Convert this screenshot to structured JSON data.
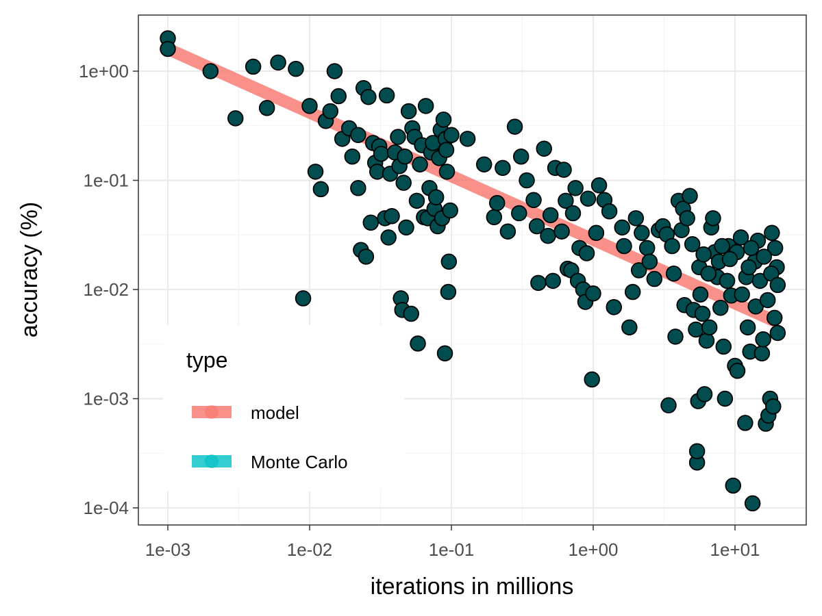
{
  "chart_data": {
    "type": "scatter",
    "xlabel": "iterations in millions",
    "ylabel": "accuracy (%)",
    "x_scale": "log10",
    "y_scale": "log10",
    "xlim": [
      0.001,
      20
    ],
    "ylim": [
      0.0001,
      2
    ],
    "x_ticks": [
      0.001,
      0.01,
      0.1,
      1,
      10
    ],
    "x_tick_labels": [
      "1e-03",
      "1e-02",
      "1e-01",
      "1e+00",
      "1e+01"
    ],
    "y_ticks": [
      0.0001,
      0.001,
      0.01,
      0.1,
      1
    ],
    "y_tick_labels": [
      "1e-04",
      "1e-03",
      "1e-02",
      "1e-01",
      "1e+00"
    ],
    "grid": true,
    "legend": {
      "title": "type",
      "position": "bottom-left",
      "entries": [
        {
          "label": "model",
          "color": "#F8766D"
        },
        {
          "label": "Monte Carlo",
          "color": "#00BFC4"
        }
      ]
    },
    "series": [
      {
        "name": "model",
        "kind": "line",
        "color": "#F8766D",
        "x": [
          0.001,
          20
        ],
        "y": [
          1.6,
          0.005
        ]
      },
      {
        "name": "Monte Carlo",
        "kind": "scatter",
        "color": "#00BFC4",
        "points": [
          [
            0.001,
            2.0
          ],
          [
            0.001,
            1.6
          ],
          [
            0.002,
            1.0
          ],
          [
            0.003,
            0.37
          ],
          [
            0.004,
            1.1
          ],
          [
            0.005,
            0.46
          ],
          [
            0.006,
            1.2
          ],
          [
            0.008,
            1.05
          ],
          [
            0.009,
            0.0083
          ],
          [
            0.01,
            0.48
          ],
          [
            0.011,
            0.12
          ],
          [
            0.012,
            0.083
          ],
          [
            0.013,
            0.35
          ],
          [
            0.014,
            0.43
          ],
          [
            0.015,
            1.0
          ],
          [
            0.016,
            0.59
          ],
          [
            0.017,
            0.24
          ],
          [
            0.019,
            0.3
          ],
          [
            0.02,
            0.165
          ],
          [
            0.022,
            0.085
          ],
          [
            0.022,
            0.26
          ],
          [
            0.023,
            0.023
          ],
          [
            0.024,
            0.7
          ],
          [
            0.025,
            0.02
          ],
          [
            0.026,
            0.58
          ],
          [
            0.027,
            0.041
          ],
          [
            0.028,
            0.22
          ],
          [
            0.029,
            0.145
          ],
          [
            0.03,
            0.12
          ],
          [
            0.031,
            0.205
          ],
          [
            0.032,
            0.175
          ],
          [
            0.034,
            0.045
          ],
          [
            0.035,
            0.6
          ],
          [
            0.036,
            0.03
          ],
          [
            0.037,
            0.115
          ],
          [
            0.038,
            0.047
          ],
          [
            0.04,
            0.18
          ],
          [
            0.042,
            0.25
          ],
          [
            0.043,
            0.135
          ],
          [
            0.044,
            0.0083
          ],
          [
            0.045,
            0.0065
          ],
          [
            0.046,
            0.095
          ],
          [
            0.047,
            0.165
          ],
          [
            0.048,
            0.037
          ],
          [
            0.05,
            0.43
          ],
          [
            0.052,
            0.006
          ],
          [
            0.053,
            0.3
          ],
          [
            0.055,
            0.25
          ],
          [
            0.057,
            0.065
          ],
          [
            0.058,
            0.0032
          ],
          [
            0.06,
            0.14
          ],
          [
            0.062,
            0.21
          ],
          [
            0.064,
            0.046
          ],
          [
            0.066,
            0.48
          ],
          [
            0.068,
            0.045
          ],
          [
            0.07,
            0.085
          ],
          [
            0.072,
            0.18
          ],
          [
            0.074,
            0.22
          ],
          [
            0.076,
            0.055
          ],
          [
            0.078,
            0.07
          ],
          [
            0.08,
            0.038
          ],
          [
            0.082,
            0.16
          ],
          [
            0.084,
            0.29
          ],
          [
            0.086,
            0.045
          ],
          [
            0.088,
            0.36
          ],
          [
            0.09,
            0.0026
          ],
          [
            0.091,
            0.24
          ],
          [
            0.092,
            0.19
          ],
          [
            0.093,
            0.12
          ],
          [
            0.095,
            0.0095
          ],
          [
            0.096,
            0.018
          ],
          [
            0.098,
            0.053
          ],
          [
            0.1,
            0.26
          ],
          [
            0.13,
            0.24
          ],
          [
            0.17,
            0.14
          ],
          [
            0.2,
            0.046
          ],
          [
            0.21,
            0.062
          ],
          [
            0.23,
            0.13
          ],
          [
            0.25,
            0.034
          ],
          [
            0.28,
            0.31
          ],
          [
            0.3,
            0.05
          ],
          [
            0.31,
            0.165
          ],
          [
            0.34,
            0.1
          ],
          [
            0.38,
            0.066
          ],
          [
            0.4,
            0.038
          ],
          [
            0.41,
            0.0115
          ],
          [
            0.45,
            0.195
          ],
          [
            0.48,
            0.031
          ],
          [
            0.5,
            0.048
          ],
          [
            0.52,
            0.012
          ],
          [
            0.54,
            0.13
          ],
          [
            0.6,
            0.034
          ],
          [
            0.62,
            0.125
          ],
          [
            0.64,
            0.065
          ],
          [
            0.66,
            0.0155
          ],
          [
            0.7,
            0.015
          ],
          [
            0.72,
            0.05
          ],
          [
            0.75,
            0.085
          ],
          [
            0.78,
            0.012
          ],
          [
            0.8,
            0.024
          ],
          [
            0.85,
            0.01
          ],
          [
            0.88,
            0.0077
          ],
          [
            0.9,
            0.0215
          ],
          [
            0.92,
            0.068
          ],
          [
            0.98,
            0.0015
          ],
          [
            1.0,
            0.0092
          ],
          [
            1.05,
            0.033
          ],
          [
            1.1,
            0.09
          ],
          [
            1.2,
            0.066
          ],
          [
            1.3,
            0.052
          ],
          [
            1.4,
            0.0069
          ],
          [
            1.6,
            0.037
          ],
          [
            1.65,
            0.025
          ],
          [
            1.8,
            0.0045
          ],
          [
            1.9,
            0.0095
          ],
          [
            2.0,
            0.045
          ],
          [
            2.1,
            0.015
          ],
          [
            2.2,
            0.033
          ],
          [
            2.4,
            0.024
          ],
          [
            2.5,
            0.018
          ],
          [
            2.7,
            0.0125
          ],
          [
            2.9,
            0.035
          ],
          [
            3.1,
            0.038
          ],
          [
            3.3,
            0.032
          ],
          [
            3.4,
            0.00087
          ],
          [
            3.6,
            0.025
          ],
          [
            3.7,
            0.014
          ],
          [
            3.8,
            0.0037
          ],
          [
            4.0,
            0.065
          ],
          [
            4.2,
            0.035
          ],
          [
            4.3,
            0.055
          ],
          [
            4.4,
            0.0072
          ],
          [
            4.6,
            0.045
          ],
          [
            4.8,
            0.072
          ],
          [
            5.0,
            0.026
          ],
          [
            5.1,
            0.0065
          ],
          [
            5.3,
            0.0043
          ],
          [
            5.4,
            0.00026
          ],
          [
            5.4,
            0.00033
          ],
          [
            5.5,
            0.00095
          ],
          [
            5.7,
            0.009
          ],
          [
            5.9,
            0.006
          ],
          [
            6.1,
            0.0011
          ],
          [
            6.3,
            0.0034
          ],
          [
            6.6,
            0.0045
          ],
          [
            6.8,
            0.037
          ],
          [
            7.0,
            0.045
          ],
          [
            7.2,
            0.022
          ],
          [
            7.5,
            0.013
          ],
          [
            7.9,
            0.0068
          ],
          [
            8.3,
            0.003
          ],
          [
            8.5,
            0.001
          ],
          [
            9.0,
            0.025
          ],
          [
            9.4,
            0.0088
          ],
          [
            9.7,
            0.00016
          ],
          [
            10.0,
            0.002
          ],
          [
            10.4,
            0.0018
          ],
          [
            11.0,
            0.03
          ],
          [
            11.8,
            0.0006
          ],
          [
            12.3,
            0.0045
          ],
          [
            12.8,
            0.0027
          ],
          [
            13.3,
            0.00011
          ],
          [
            13.8,
            0.018
          ],
          [
            14.5,
            0.028
          ],
          [
            15.5,
            0.0026
          ],
          [
            16.5,
            0.00059
          ],
          [
            17.2,
            0.0007
          ],
          [
            17.7,
            0.001
          ],
          [
            18.2,
            0.033
          ],
          [
            18.6,
            0.00085
          ],
          [
            19.2,
            0.024
          ],
          [
            19.7,
            0.016
          ],
          [
            20.0,
            0.004
          ],
          [
            5.6,
            0.016
          ],
          [
            6.0,
            0.021
          ],
          [
            6.5,
            0.014
          ],
          [
            7.7,
            0.018
          ],
          [
            8.1,
            0.025
          ],
          [
            8.8,
            0.012
          ],
          [
            10.3,
            0.022
          ],
          [
            11.2,
            0.009
          ],
          [
            12.0,
            0.013
          ],
          [
            13.0,
            0.024
          ],
          [
            14.0,
            0.007
          ],
          [
            15.0,
            0.012
          ],
          [
            16.0,
            0.02
          ],
          [
            17.0,
            0.008
          ],
          [
            18.0,
            0.014
          ],
          [
            19.0,
            0.0055
          ],
          [
            20.0,
            0.011
          ],
          [
            15.8,
            0.0035
          ],
          [
            12.5,
            0.016
          ],
          [
            9.2,
            0.019
          ]
        ]
      }
    ]
  }
}
